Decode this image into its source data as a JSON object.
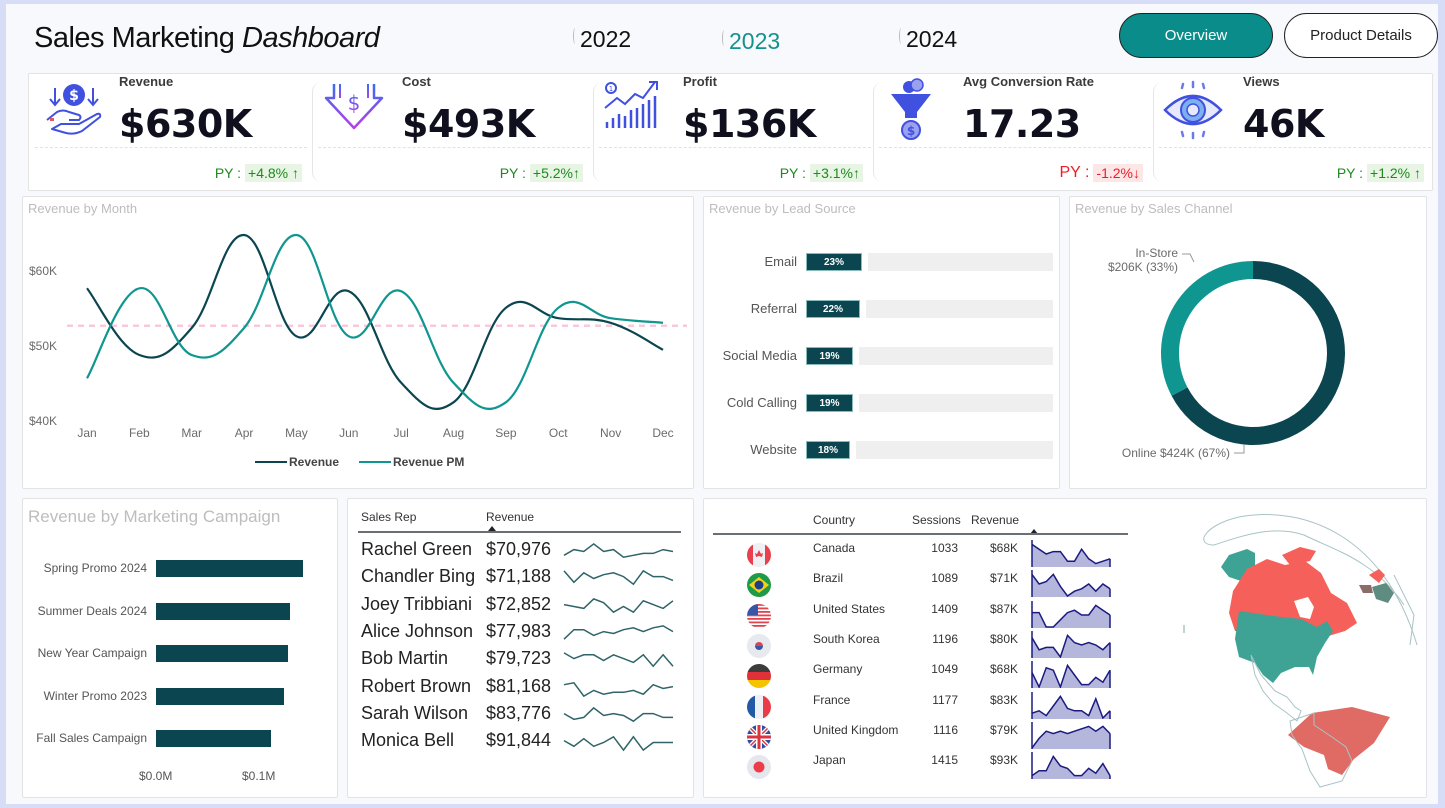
{
  "header": {
    "title_regular": "Sales Marketing ",
    "title_italic": "Dashboard",
    "years": [
      {
        "label": "2022",
        "active": false
      },
      {
        "label": "2023",
        "active": true
      },
      {
        "label": "2024",
        "active": false
      }
    ],
    "nav": {
      "overview": "Overview",
      "product_details": "Product Details"
    }
  },
  "colors": {
    "accent": "#0a8d8a",
    "dark_teal": "#0b4650",
    "teal": "#0f9690",
    "positive": "#1d8a1d",
    "negative": "#ee1c25",
    "map_red": "#f5605a",
    "map_green": "#3ea394",
    "area_fill": "#b5b6dc",
    "area_line": "#1a1a80"
  },
  "kpis": [
    {
      "label": "Revenue",
      "value": "$630K",
      "py_label": "PY :",
      "py_change": "+4.8% ↑",
      "direction": "up",
      "icon": "hand-dollar-icon"
    },
    {
      "label": "Cost",
      "value": "$493K",
      "py_label": "PY :",
      "py_change": "+5.2%↑",
      "direction": "up",
      "icon": "down-arrow-dollar-icon"
    },
    {
      "label": "Profit",
      "value": "$136K",
      "py_label": "PY :",
      "py_change": "+3.1%↑",
      "direction": "up",
      "icon": "growth-chart-icon"
    },
    {
      "label": "Avg Conversion Rate",
      "value": "17.23",
      "py_label": "PY :",
      "py_change": "-1.2%↓",
      "direction": "down",
      "icon": "funnel-coin-icon"
    },
    {
      "label": "Views",
      "value": "46K",
      "py_label": "PY :",
      "py_change": "+1.2% ↑",
      "direction": "up",
      "icon": "eye-icon"
    }
  ],
  "chart_data": [
    {
      "type": "line",
      "title": "Revenue by Month",
      "categories": [
        "Jan",
        "Feb",
        "Mar",
        "Apr",
        "May",
        "Jun",
        "Jul",
        "Aug",
        "Sep",
        "Oct",
        "Nov",
        "Dec"
      ],
      "series": [
        {
          "name": "Revenue",
          "values": [
            57700,
            48800,
            52400,
            64800,
            51300,
            57300,
            45100,
            42500,
            55100,
            53700,
            53100,
            49500
          ]
        },
        {
          "name": "Revenue PM",
          "values": [
            45700,
            57700,
            48800,
            52400,
            64800,
            51300,
            57300,
            45100,
            42500,
            55100,
            53700,
            53100
          ]
        }
      ],
      "reference_line": {
        "name": "Average",
        "value": 52700
      },
      "yticks": [
        "$40K",
        "$50K",
        "$60K"
      ],
      "ytick_values": [
        40000,
        50000,
        60000
      ],
      "ylim": [
        40000,
        66000
      ],
      "legend": "bottom-center",
      "grid": false
    },
    {
      "type": "bar",
      "title": "Revenue by Lead Source",
      "orientation": "horizontal",
      "categories": [
        "Email",
        "Referral",
        "Social Media",
        "Cold Calling",
        "Website"
      ],
      "values": [
        23,
        22,
        19,
        19,
        18
      ],
      "labels": [
        "23%",
        "22%",
        "19%",
        "19%",
        "18%"
      ],
      "unit": "%"
    },
    {
      "type": "pie",
      "variant": "donut",
      "title": "Revenue by Sales Channel",
      "categories": [
        "Online",
        "In-Store"
      ],
      "values": [
        424,
        206
      ],
      "percents": [
        67,
        33
      ],
      "labels": [
        "Online $424K (67%)",
        "$206K (33%)"
      ],
      "label_names": [
        "Online",
        "In-Store"
      ]
    },
    {
      "type": "bar",
      "title": "Revenue by Marketing Campaign",
      "orientation": "horizontal",
      "categories": [
        "Spring Promo 2024",
        "Summer Deals 2024",
        "New Year Campaign",
        "Winter Promo 2023",
        "Fall Sales Campaign"
      ],
      "values": [
        0.143,
        0.13,
        0.128,
        0.124,
        0.112
      ],
      "xticks": [
        "$0.0M",
        "$0.1M"
      ],
      "xtick_values": [
        0,
        0.1
      ],
      "xlabel_unit": "$M"
    }
  ],
  "sales_reps": {
    "headers": {
      "name": "Sales Rep",
      "revenue": "Revenue"
    },
    "rows": [
      {
        "name": "Rachel Green",
        "revenue": "$70,976",
        "trend": [
          3,
          6,
          5,
          9,
          5,
          6,
          2,
          3,
          4,
          4,
          6,
          5
        ]
      },
      {
        "name": "Chandler Bing",
        "revenue": "$71,188",
        "trend": [
          9,
          3,
          8,
          5,
          7,
          8,
          6,
          2,
          9,
          6,
          6,
          4
        ]
      },
      {
        "name": "Joey Tribbiani",
        "revenue": "$72,852",
        "trend": [
          6,
          5,
          4,
          9,
          7,
          2,
          5,
          2,
          8,
          6,
          4,
          8
        ]
      },
      {
        "name": "Alice Johnson",
        "revenue": "$77,983",
        "trend": [
          2,
          7,
          7,
          4,
          6,
          5,
          7,
          8,
          6,
          8,
          9,
          6
        ]
      },
      {
        "name": "Bob Martin",
        "revenue": "$79,723",
        "trend": [
          9,
          6,
          8,
          8,
          5,
          8,
          6,
          4,
          8,
          2,
          8,
          2
        ]
      },
      {
        "name": "Robert Brown",
        "revenue": "$81,168",
        "trend": [
          7,
          8,
          1,
          4,
          2,
          3,
          3,
          4,
          2,
          7,
          5,
          6
        ]
      },
      {
        "name": "Sarah Wilson",
        "revenue": "$83,776",
        "trend": [
          6,
          3,
          4,
          9,
          5,
          6,
          5,
          2,
          6,
          6,
          4,
          4
        ]
      },
      {
        "name": "Monica Bell",
        "revenue": "$91,844",
        "trend": [
          6,
          3,
          7,
          3,
          5,
          8,
          1,
          8,
          1,
          5,
          5,
          5
        ]
      }
    ]
  },
  "countries": {
    "headers": {
      "country": "Country",
      "sessions": "Sessions",
      "revenue": "Revenue"
    },
    "rows": [
      {
        "country": "Canada",
        "sessions": "1033",
        "revenue": "$68K",
        "flag": "canada-flag-icon",
        "trend": [
          9,
          7,
          5,
          6,
          6,
          2,
          2,
          7,
          3,
          1,
          2,
          3
        ]
      },
      {
        "country": "Brazil",
        "sessions": "1089",
        "revenue": "$71K",
        "flag": "brazil-flag-icon",
        "trend": [
          9,
          5,
          6,
          9,
          4,
          0,
          2,
          3,
          5,
          2,
          5,
          3
        ]
      },
      {
        "country": "United States",
        "sessions": "1409",
        "revenue": "$87K",
        "flag": "usa-flag-icon",
        "trend": [
          6,
          6,
          0,
          0,
          3,
          6,
          7,
          5,
          5,
          9,
          7,
          5
        ]
      },
      {
        "country": "South Korea",
        "sessions": "1196",
        "revenue": "$80K",
        "flag": "south-korea-flag-icon",
        "trend": [
          8,
          3,
          4,
          4,
          0,
          9,
          6,
          5,
          6,
          5,
          3,
          6
        ]
      },
      {
        "country": "Germany",
        "sessions": "1049",
        "revenue": "$68K",
        "flag": "germany-flag-icon",
        "trend": [
          6,
          0,
          8,
          7,
          0,
          9,
          5,
          1,
          1,
          4,
          2,
          7
        ]
      },
      {
        "country": "France",
        "sessions": "1177",
        "revenue": "$83K",
        "flag": "france-flag-icon",
        "trend": [
          2,
          3,
          1,
          5,
          9,
          4,
          3,
          3,
          1,
          8,
          0,
          3
        ]
      },
      {
        "country": "United Kingdom",
        "sessions": "1116",
        "revenue": "$79K",
        "flag": "uk-flag-icon",
        "trend": [
          0,
          4,
          7,
          6,
          7,
          6,
          7,
          8,
          9,
          7,
          9,
          6
        ]
      },
      {
        "country": "Japan",
        "sessions": "1415",
        "revenue": "$93K",
        "flag": "japan-flag-icon",
        "trend": [
          1,
          3,
          3,
          9,
          5,
          4,
          1,
          1,
          4,
          2,
          6,
          1
        ]
      }
    ]
  }
}
